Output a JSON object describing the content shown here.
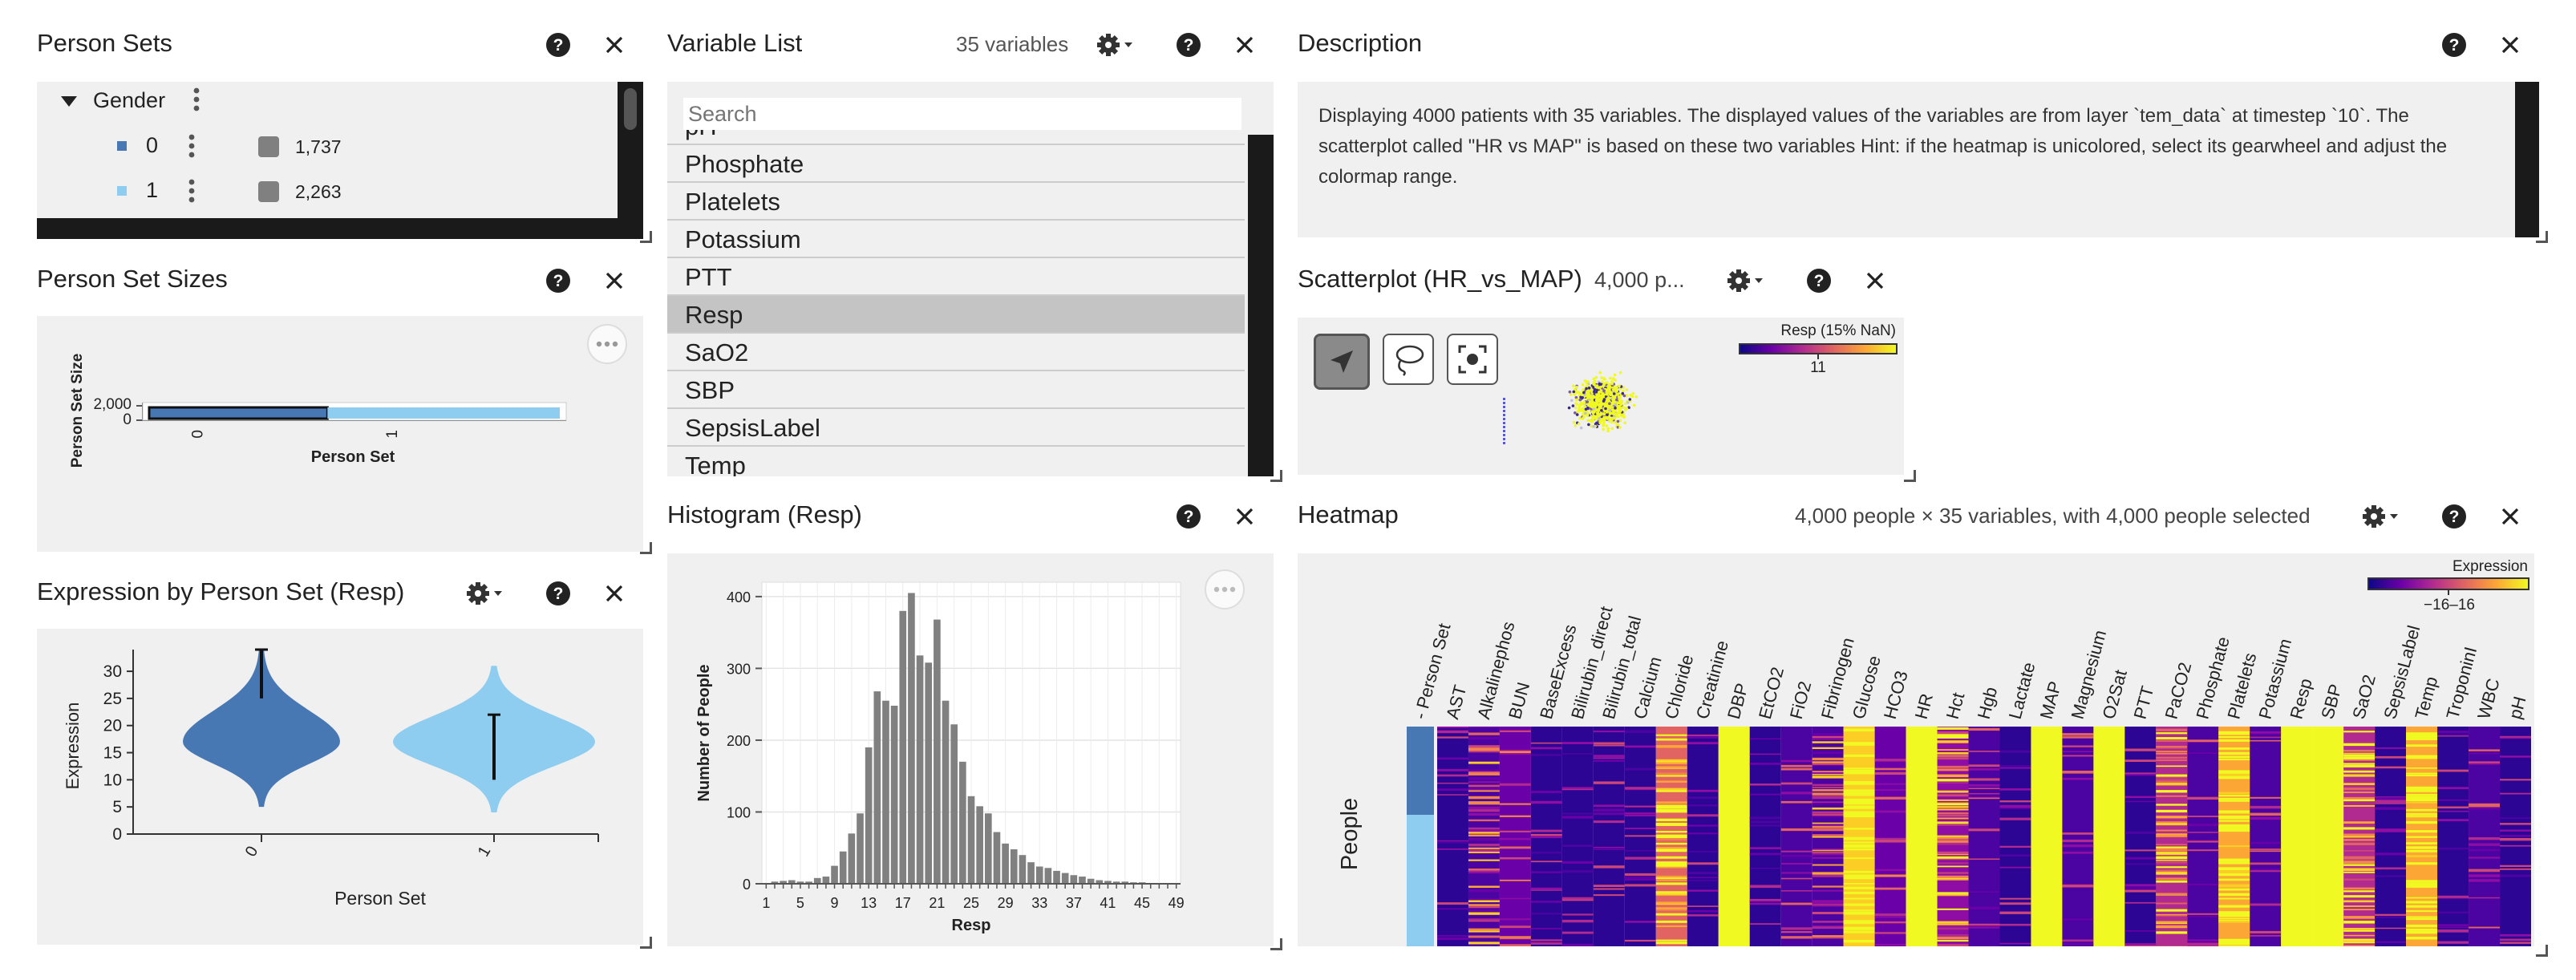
{
  "person_sets": {
    "title": "Person Sets",
    "group": "Gender",
    "items": [
      {
        "label": "0",
        "count": "1,737",
        "color": "#4878b4"
      },
      {
        "label": "1",
        "count": "2,263",
        "color": "#8ecdf0"
      }
    ]
  },
  "person_set_sizes": {
    "title": "Person Set Sizes",
    "chart_data": {
      "type": "bar",
      "orientation": "horizontal",
      "categories": [
        "0",
        "1"
      ],
      "values": [
        1737,
        2263
      ],
      "colors": [
        "#4878b4",
        "#8ecdf0"
      ],
      "xlabel": "Person Set",
      "ylabel": "Person Set Size",
      "y_ticks": [
        "2,000",
        "0"
      ]
    }
  },
  "expression": {
    "title": "Expression by Person Set (Resp)",
    "chart_data": {
      "type": "violin",
      "categories": [
        "0",
        "1"
      ],
      "colors": [
        "#4878b4",
        "#8ecdf0"
      ],
      "xlabel": "Person Set",
      "ylabel": "Expression",
      "ylim": [
        0,
        34
      ],
      "y_ticks": [
        0,
        5,
        10,
        15,
        20,
        25,
        30
      ],
      "whiskers": [
        [
          25,
          34
        ],
        [
          10,
          22
        ]
      ]
    }
  },
  "variable_list": {
    "title": "Variable List",
    "count": "35 variables",
    "search_placeholder": "Search",
    "partial_top": "pH",
    "items": [
      "Phosphate",
      "Platelets",
      "Potassium",
      "PTT",
      "Resp",
      "SaO2",
      "SBP",
      "SepsisLabel"
    ],
    "selected": "Resp",
    "partial_bottom": "Temp"
  },
  "histogram": {
    "title": "Histogram (Resp)",
    "chart_data": {
      "type": "bar",
      "xlabel": "Resp",
      "ylabel": "Number of People",
      "x_ticks": [
        "1",
        "5",
        "9",
        "13",
        "17",
        "21",
        "25",
        "29",
        "33",
        "37",
        "41",
        "45",
        "49"
      ],
      "ylim": [
        0,
        420
      ],
      "y_ticks": [
        0,
        100,
        200,
        300,
        400
      ],
      "bins_x": [
        1,
        2,
        3,
        4,
        5,
        6,
        7,
        8,
        9,
        10,
        11,
        12,
        13,
        14,
        15,
        16,
        17,
        18,
        19,
        20,
        21,
        22,
        23,
        24,
        25,
        26,
        27,
        28,
        29,
        30,
        31,
        32,
        33,
        34,
        35,
        36,
        37,
        38,
        39,
        40,
        41,
        42,
        43,
        44,
        45,
        46,
        47,
        48,
        49
      ],
      "values": [
        0,
        3,
        4,
        5,
        3,
        3,
        8,
        10,
        25,
        45,
        70,
        98,
        190,
        268,
        255,
        248,
        380,
        405,
        318,
        308,
        368,
        255,
        222,
        170,
        122,
        108,
        98,
        72,
        56,
        48,
        40,
        30,
        24,
        22,
        18,
        15,
        12,
        10,
        7,
        5,
        4,
        3,
        3,
        2,
        2,
        1,
        1,
        1,
        1
      ]
    }
  },
  "description": {
    "title": "Description",
    "text": "Displaying 4000 patients with 35 variables. The displayed values of the variables are from layer `tem_data` at timestep `10`. The scatterplot called \"HR vs MAP\" is based on these two variables Hint: if the heatmap is unicolored, select its gearwheel and adjust the colormap range."
  },
  "scatterplot": {
    "title": "Scatterplot (HR_vs_MAP)",
    "meta": "4,000 p...",
    "legend_title": "Resp (15% NaN)",
    "legend_tick": "11"
  },
  "heatmap": {
    "title": "Heatmap",
    "meta": "4,000 people × 35 variables, with 4,000 people selected",
    "legend_title": "Expression",
    "legend_value": "−16–16",
    "ylabel": "People",
    "columns": [
      "- Person Set",
      "AST",
      "Alkalinephos",
      "BUN",
      "BaseExcess",
      "Bilirubin_direct",
      "Bilirubin_total",
      "Calcium",
      "Chloride",
      "Creatinine",
      "DBP",
      "EtCO2",
      "FiO2",
      "Fibrinogen",
      "Glucose",
      "HCO3",
      "HR",
      "Hct",
      "Hgb",
      "Lactate",
      "MAP",
      "Magnesium",
      "O2Sat",
      "PTT",
      "PaCO2",
      "Phosphate",
      "Platelets",
      "Potassium",
      "Resp",
      "SBP",
      "SaO2",
      "SepsisLabel",
      "Temp",
      "TroponinI",
      "WBC",
      "pH"
    ]
  }
}
